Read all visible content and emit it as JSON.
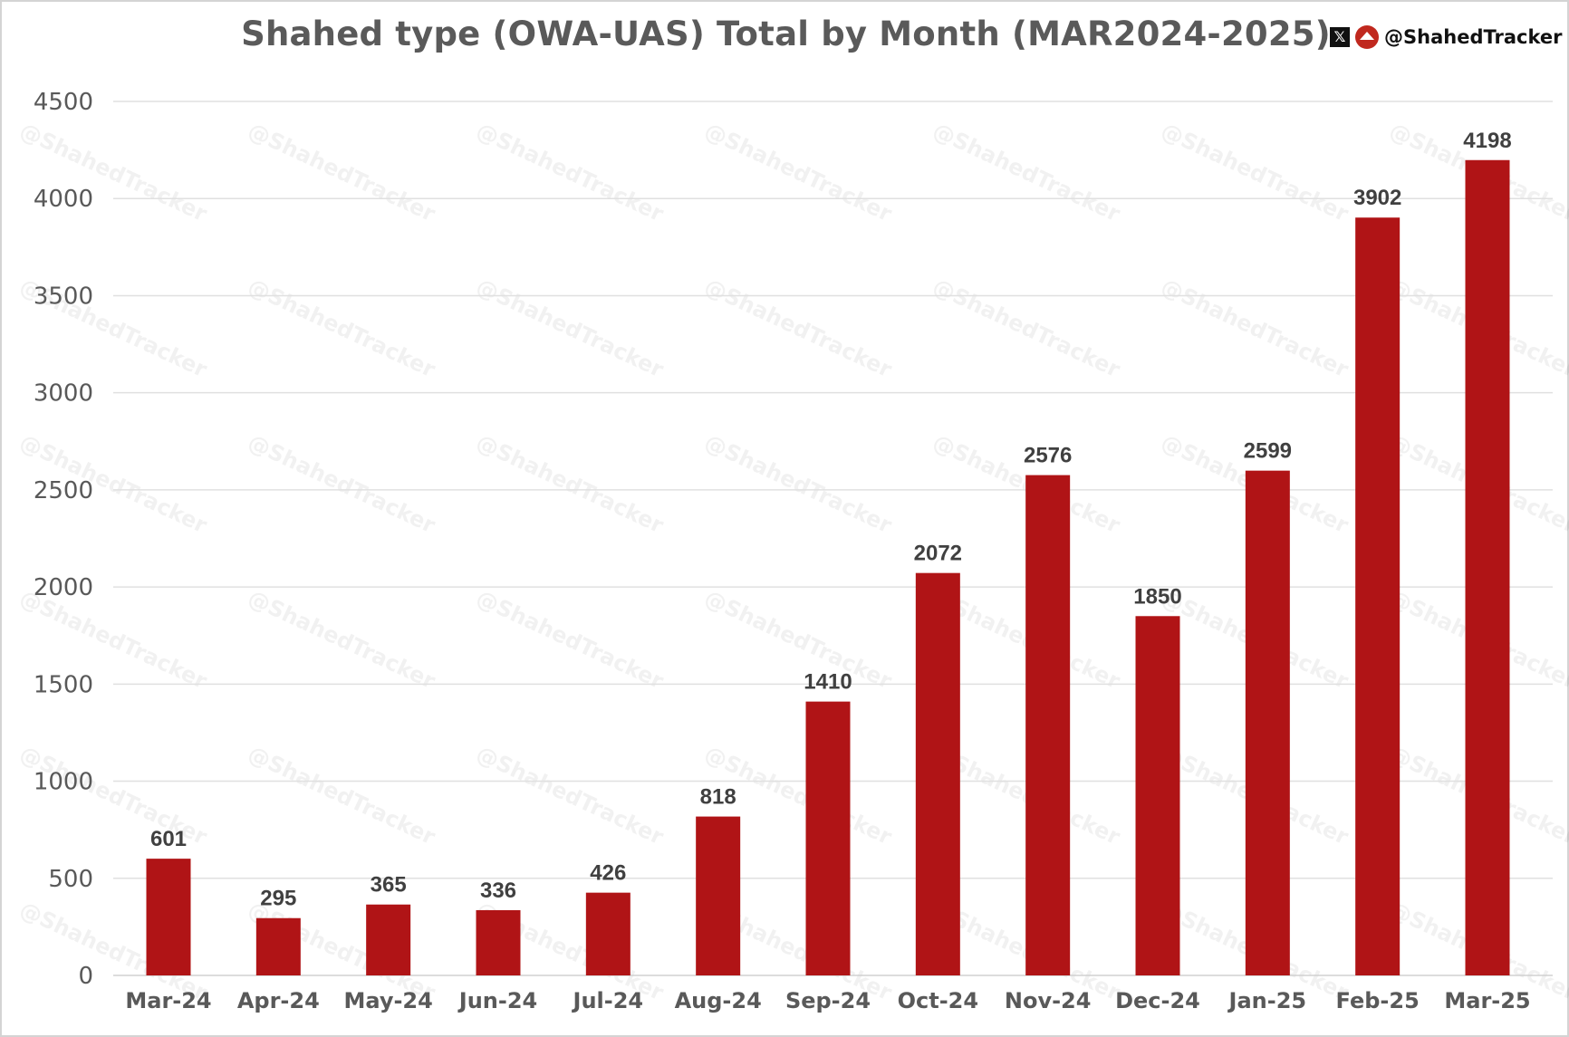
{
  "chart_data": {
    "type": "bar",
    "title": "Shahed type (OWA-UAS) Total by Month (MAR2024-2025)",
    "categories": [
      "Mar-24",
      "Apr-24",
      "May-24",
      "Jun-24",
      "Jul-24",
      "Aug-24",
      "Sep-24",
      "Oct-24",
      "Nov-24",
      "Dec-24",
      "Jan-25",
      "Feb-25",
      "Mar-25"
    ],
    "values": [
      601,
      295,
      365,
      336,
      426,
      818,
      1410,
      2072,
      2576,
      1850,
      2599,
      3902,
      4198
    ],
    "xlabel": "",
    "ylabel": "",
    "ylim": [
      0,
      4500
    ],
    "yticks": [
      0,
      500,
      1000,
      1500,
      2000,
      2500,
      3000,
      3500,
      4000,
      4500
    ],
    "grid": true,
    "legend": "none",
    "bar_color": "#b01416",
    "data_labels": true
  },
  "branding": {
    "handle": "@ShahedTracker",
    "x_icon": "x-logo-icon",
    "logo_icon": "shahed-tracker-logo-icon",
    "watermark": "@ShahedTracker"
  }
}
